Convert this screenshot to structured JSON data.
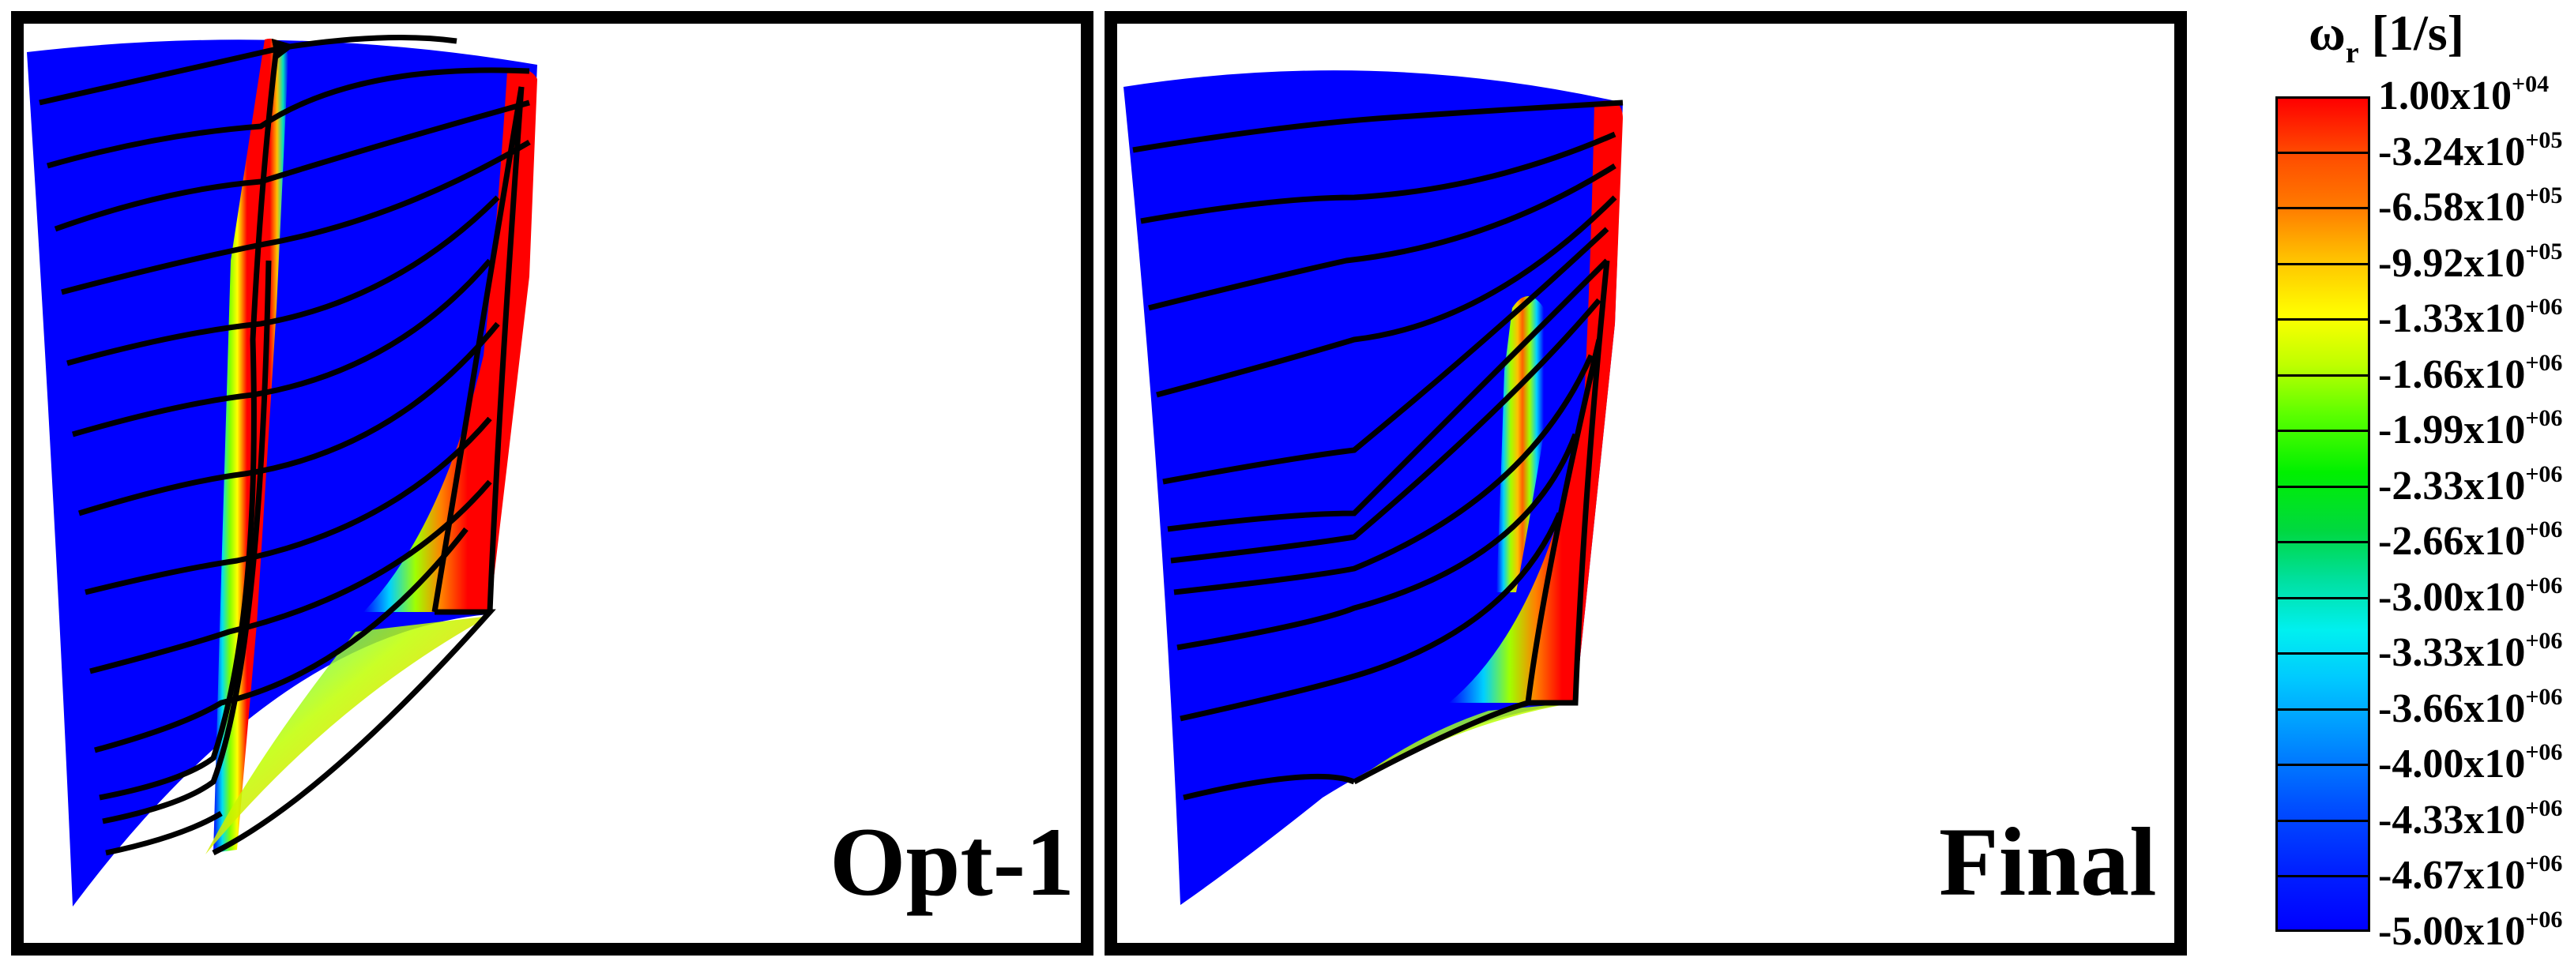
{
  "panels": [
    {
      "id": "opt1",
      "label": "Opt-1"
    },
    {
      "id": "final",
      "label": "Final"
    }
  ],
  "colorbar": {
    "symbol": "ω",
    "subscript": "r",
    "unit": "[1/s]",
    "ticks": [
      {
        "mantissa": "1.00x10",
        "exponent": "+04"
      },
      {
        "mantissa": "-3.24x10",
        "exponent": "+05"
      },
      {
        "mantissa": "-6.58x10",
        "exponent": "+05"
      },
      {
        "mantissa": "-9.92x10",
        "exponent": "+05"
      },
      {
        "mantissa": "-1.33x10",
        "exponent": "+06"
      },
      {
        "mantissa": "-1.66x10",
        "exponent": "+06"
      },
      {
        "mantissa": "-1.99x10",
        "exponent": "+06"
      },
      {
        "mantissa": "-2.33x10",
        "exponent": "+06"
      },
      {
        "mantissa": "-2.66x10",
        "exponent": "+06"
      },
      {
        "mantissa": "-3.00x10",
        "exponent": "+06"
      },
      {
        "mantissa": "-3.33x10",
        "exponent": "+06"
      },
      {
        "mantissa": "-3.66x10",
        "exponent": "+06"
      },
      {
        "mantissa": "-4.00x10",
        "exponent": "+06"
      },
      {
        "mantissa": "-4.33x10",
        "exponent": "+06"
      },
      {
        "mantissa": "-4.67x10",
        "exponent": "+06"
      },
      {
        "mantissa": "-5.00x10",
        "exponent": "+06"
      }
    ],
    "colors": {
      "max": "#ff0000",
      "min": "#0000ff",
      "background": "#0000ff",
      "streamline": "#000000"
    }
  }
}
